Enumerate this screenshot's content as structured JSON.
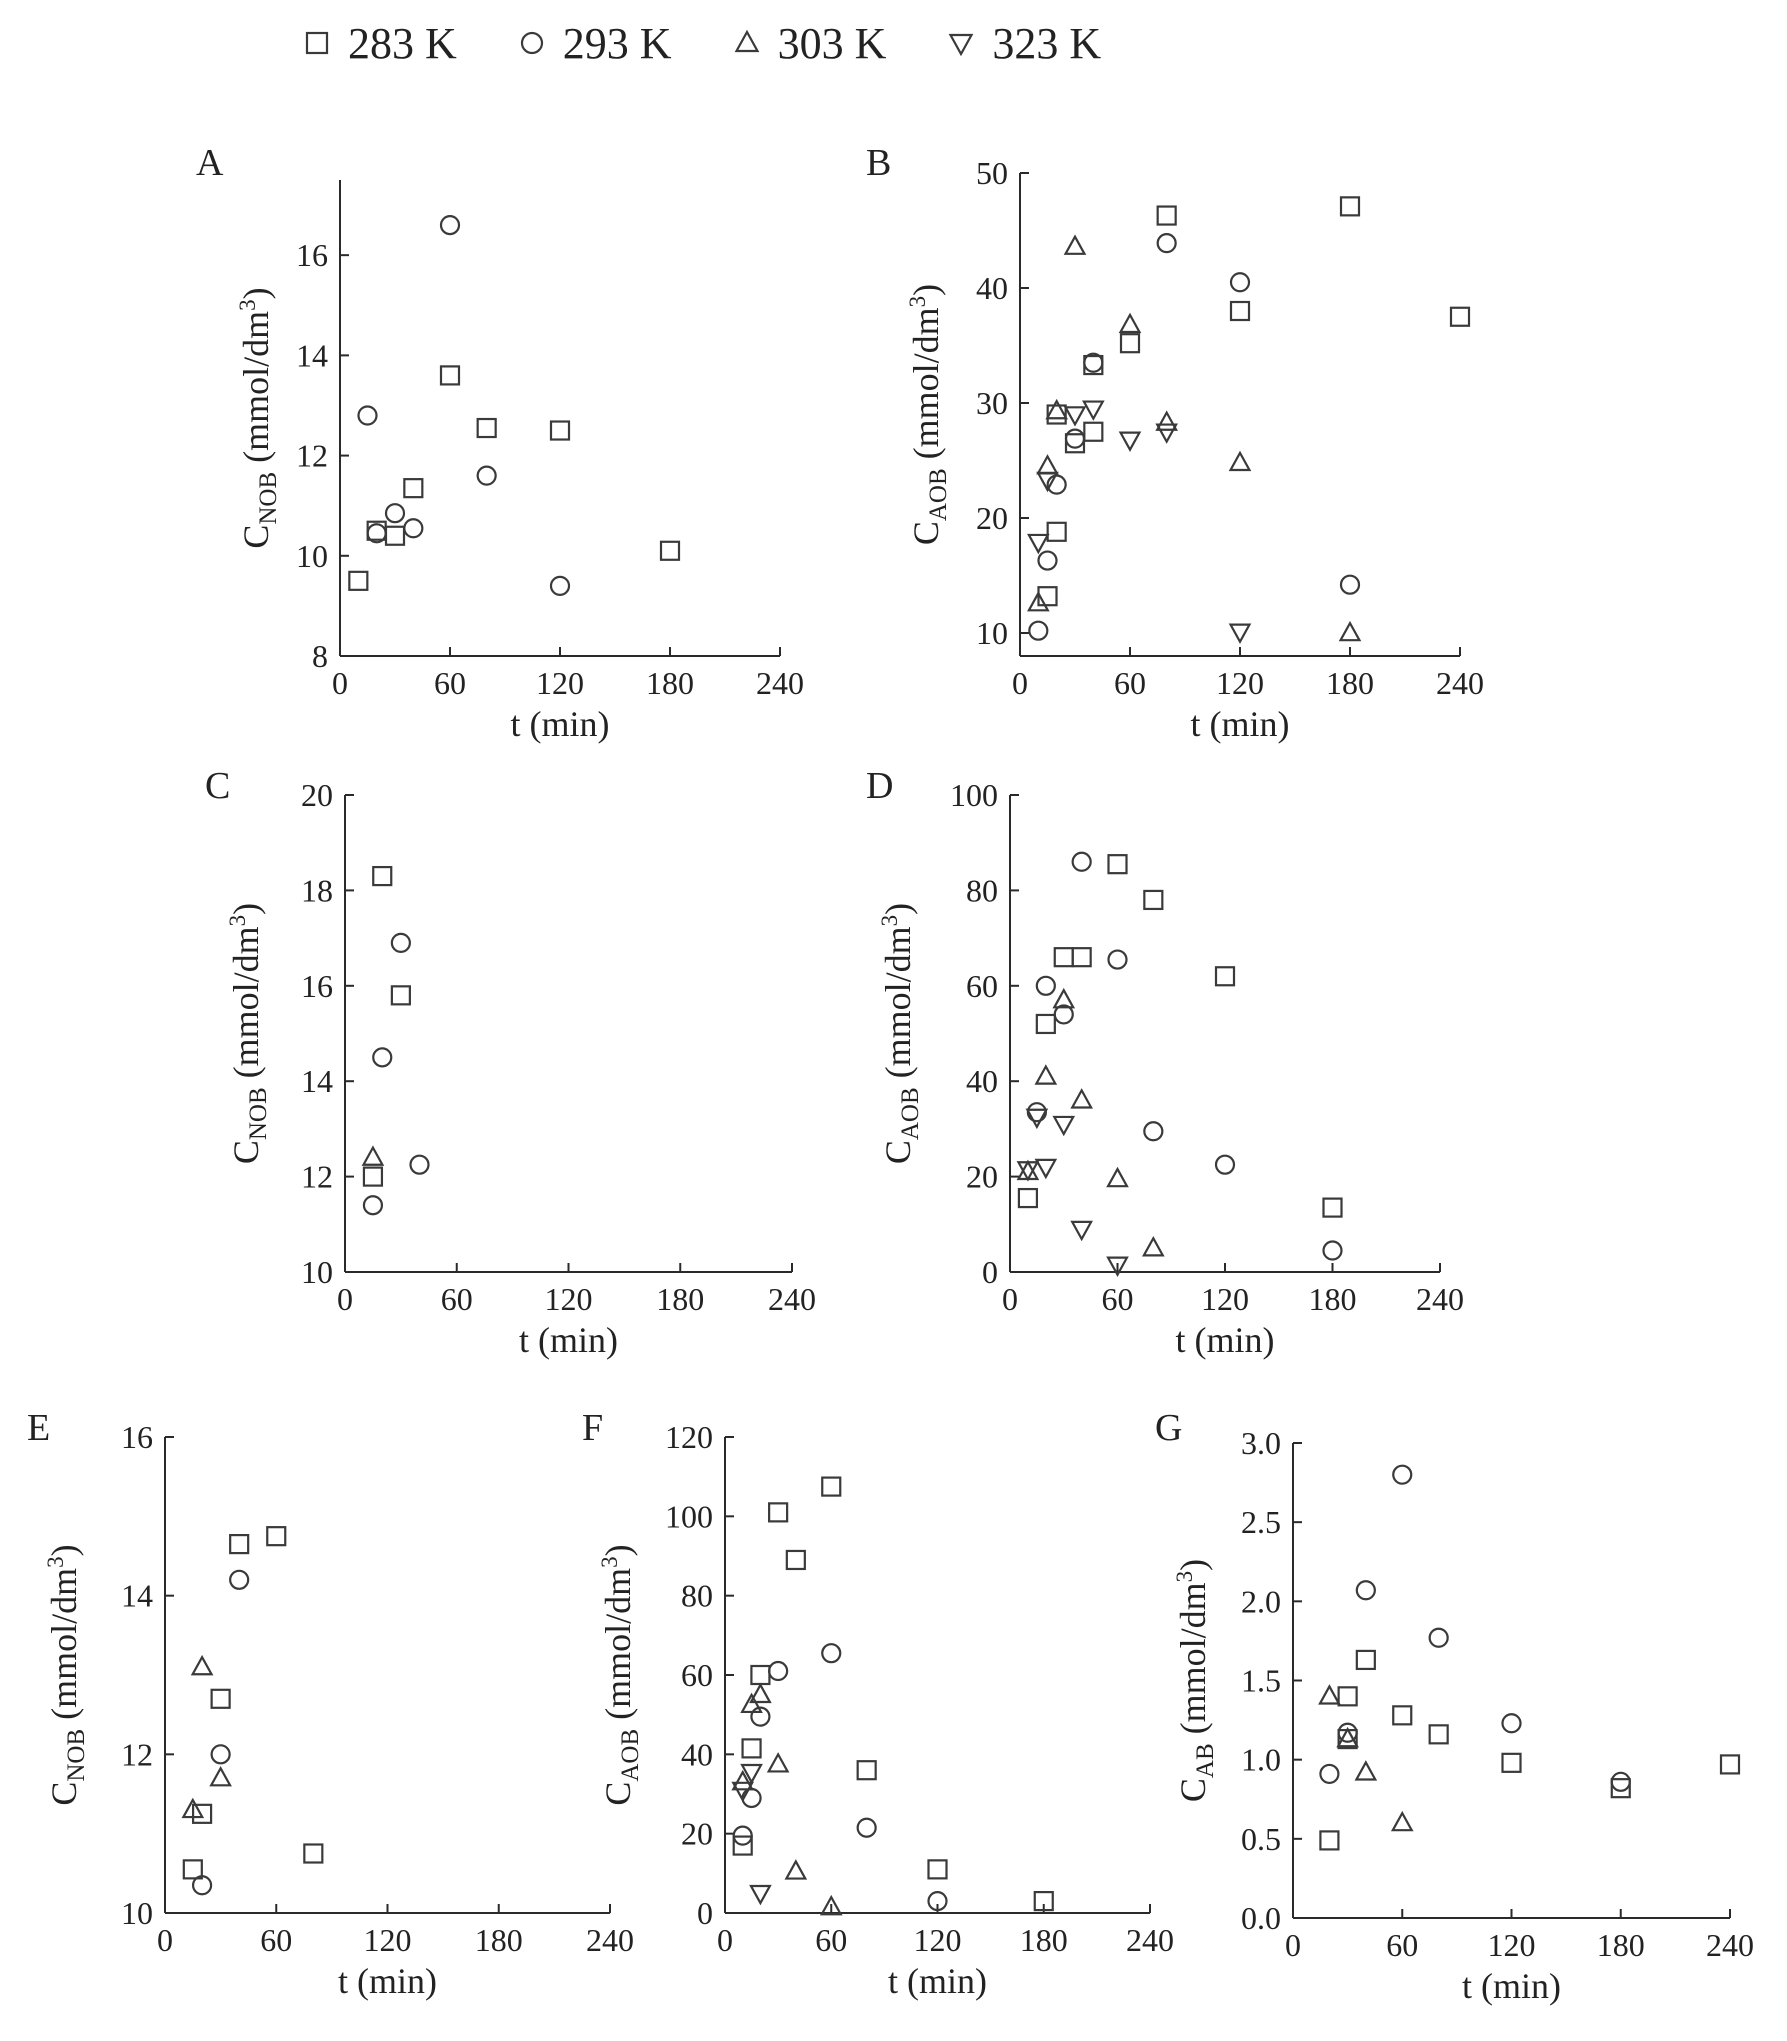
{
  "legend": [
    {
      "marker": "square",
      "label": "283 K"
    },
    {
      "marker": "circle",
      "label": "293 K"
    },
    {
      "marker": "triangle-up",
      "label": "303 K"
    },
    {
      "marker": "triangle-down",
      "label": "323 K"
    }
  ],
  "colors": {
    "marker": "#3a3a3a",
    "axis": "#2a2a2a",
    "text": "#222222"
  },
  "chart_data": [
    {
      "panel": "A",
      "type": "scatter",
      "xlabel": "t (min)",
      "ylabel": {
        "main": "C",
        "sub": "NOB",
        "unit": " (mmol/dm",
        "sup": "3",
        "close": ")"
      },
      "xlim": [
        0,
        240
      ],
      "ylim": [
        8,
        17.5
      ],
      "xticks": [
        0,
        60,
        120,
        180,
        240
      ],
      "yticks": [
        8,
        10,
        12,
        14,
        16
      ],
      "series": [
        {
          "name": "283 K",
          "marker": "square",
          "points": [
            [
              10,
              9.5
            ],
            [
              20,
              10.5
            ],
            [
              30,
              10.4
            ],
            [
              40,
              11.35
            ],
            [
              60,
              13.6
            ],
            [
              80,
              12.55
            ],
            [
              120,
              12.5
            ],
            [
              180,
              10.1
            ]
          ]
        },
        {
          "name": "293 K",
          "marker": "circle",
          "points": [
            [
              15,
              12.8
            ],
            [
              20,
              10.45
            ],
            [
              30,
              10.85
            ],
            [
              40,
              10.55
            ],
            [
              60,
              16.6
            ],
            [
              80,
              11.6
            ],
            [
              120,
              9.4
            ]
          ]
        }
      ]
    },
    {
      "panel": "B",
      "type": "scatter",
      "xlabel": "t (min)",
      "ylabel": {
        "main": "C",
        "sub": "AOB",
        "unit": " (mmol/dm",
        "sup": "3",
        "close": ")"
      },
      "xlim": [
        0,
        240
      ],
      "ylim": [
        8,
        50
      ],
      "xticks": [
        0,
        60,
        120,
        180,
        240
      ],
      "yticks": [
        10,
        20,
        30,
        40,
        50
      ],
      "series": [
        {
          "name": "283 K",
          "marker": "square",
          "points": [
            [
              15,
              13.2
            ],
            [
              20,
              18.8
            ],
            [
              20,
              29.0
            ],
            [
              30,
              26.5
            ],
            [
              40,
              27.5
            ],
            [
              40,
              33.3
            ],
            [
              60,
              35.2
            ],
            [
              80,
              46.3
            ],
            [
              120,
              38.0
            ],
            [
              180,
              47.1
            ],
            [
              240,
              37.5
            ]
          ]
        },
        {
          "name": "293 K",
          "marker": "circle",
          "points": [
            [
              10,
              10.2
            ],
            [
              15,
              16.3
            ],
            [
              20,
              22.9
            ],
            [
              30,
              26.9
            ],
            [
              40,
              33.5
            ],
            [
              80,
              43.9
            ],
            [
              120,
              40.5
            ],
            [
              180,
              14.2
            ]
          ]
        },
        {
          "name": "303 K",
          "marker": "triangle-up",
          "points": [
            [
              10,
              12.6
            ],
            [
              15,
              24.5
            ],
            [
              20,
              29.3
            ],
            [
              30,
              43.6
            ],
            [
              60,
              36.8
            ],
            [
              80,
              28.3
            ],
            [
              120,
              24.8
            ],
            [
              180,
              10.0
            ]
          ]
        },
        {
          "name": "323 K",
          "marker": "triangle-down",
          "points": [
            [
              10,
              17.9
            ],
            [
              15,
              23.3
            ],
            [
              30,
              29.0
            ],
            [
              40,
              29.5
            ],
            [
              60,
              26.8
            ],
            [
              80,
              27.5
            ],
            [
              120,
              10.1
            ]
          ]
        }
      ]
    },
    {
      "panel": "C",
      "type": "scatter",
      "xlabel": "t (min)",
      "ylabel": {
        "main": "C",
        "sub": "NOB",
        "unit": " (mmol/dm",
        "sup": "3",
        "close": ")"
      },
      "xlim": [
        0,
        240
      ],
      "ylim": [
        10,
        20
      ],
      "xticks": [
        0,
        60,
        120,
        180,
        240
      ],
      "yticks": [
        10,
        12,
        14,
        16,
        18,
        20
      ],
      "series": [
        {
          "name": "283 K",
          "marker": "square",
          "points": [
            [
              15,
              12.0
            ],
            [
              20,
              18.3
            ],
            [
              30,
              15.8
            ]
          ]
        },
        {
          "name": "293 K",
          "marker": "circle",
          "points": [
            [
              15,
              11.4
            ],
            [
              20,
              14.5
            ],
            [
              30,
              16.9
            ],
            [
              40,
              12.25
            ]
          ]
        },
        {
          "name": "303 K",
          "marker": "triangle-up",
          "points": [
            [
              15,
              12.4
            ]
          ]
        }
      ]
    },
    {
      "panel": "D",
      "type": "scatter",
      "xlabel": "t (min)",
      "ylabel": {
        "main": "C",
        "sub": "AOB",
        "unit": " (mmol/dm",
        "sup": "3",
        "close": ")"
      },
      "xlim": [
        0,
        240
      ],
      "ylim": [
        0,
        100
      ],
      "xticks": [
        0,
        60,
        120,
        180,
        240
      ],
      "yticks": [
        0,
        20,
        40,
        60,
        80,
        100
      ],
      "series": [
        {
          "name": "283 K",
          "marker": "square",
          "points": [
            [
              10,
              15.5
            ],
            [
              20,
              52
            ],
            [
              30,
              66
            ],
            [
              40,
              66
            ],
            [
              60,
              85.5
            ],
            [
              80,
              78
            ],
            [
              120,
              62
            ],
            [
              180,
              13.5
            ]
          ]
        },
        {
          "name": "293 K",
          "marker": "circle",
          "points": [
            [
              15,
              33.5
            ],
            [
              20,
              60
            ],
            [
              30,
              54
            ],
            [
              40,
              86
            ],
            [
              60,
              65.5
            ],
            [
              80,
              29.5
            ],
            [
              120,
              22.5
            ],
            [
              180,
              4.5
            ]
          ]
        },
        {
          "name": "303 K",
          "marker": "triangle-up",
          "points": [
            [
              10,
              21
            ],
            [
              20,
              41
            ],
            [
              30,
              57
            ],
            [
              40,
              36
            ],
            [
              60,
              19.5
            ],
            [
              80,
              5
            ]
          ]
        },
        {
          "name": "323 K",
          "marker": "triangle-down",
          "points": [
            [
              10,
              21.5
            ],
            [
              15,
              32.5
            ],
            [
              20,
              22
            ],
            [
              30,
              31
            ],
            [
              40,
              9
            ],
            [
              60,
              1.5
            ]
          ]
        }
      ]
    },
    {
      "panel": "E",
      "type": "scatter",
      "xlabel": "t (min)",
      "ylabel": {
        "main": "C",
        "sub": "NOB",
        "unit": " (mmol/dm",
        "sup": "3",
        "close": ")"
      },
      "xlim": [
        0,
        240
      ],
      "ylim": [
        10,
        16
      ],
      "xticks": [
        0,
        60,
        120,
        180,
        240
      ],
      "yticks": [
        10,
        12,
        14,
        16
      ],
      "series": [
        {
          "name": "283 K",
          "marker": "square",
          "points": [
            [
              15,
              10.55
            ],
            [
              20,
              11.25
            ],
            [
              30,
              12.7
            ],
            [
              40,
              14.65
            ],
            [
              60,
              14.75
            ],
            [
              80,
              10.75
            ]
          ]
        },
        {
          "name": "293 K",
          "marker": "circle",
          "points": [
            [
              20,
              10.35
            ],
            [
              30,
              12.0
            ],
            [
              40,
              14.2
            ]
          ]
        },
        {
          "name": "303 K",
          "marker": "triangle-up",
          "points": [
            [
              15,
              11.3
            ],
            [
              20,
              13.1
            ],
            [
              30,
              11.7
            ]
          ]
        }
      ]
    },
    {
      "panel": "F",
      "type": "scatter",
      "xlabel": "t (min)",
      "ylabel": {
        "main": "C",
        "sub": "AOB",
        "unit": " (mmol/dm",
        "sup": "3",
        "close": ")"
      },
      "xlim": [
        0,
        240
      ],
      "ylim": [
        0,
        120
      ],
      "xticks": [
        0,
        60,
        120,
        180,
        240
      ],
      "yticks": [
        0,
        20,
        40,
        60,
        80,
        100,
        120
      ],
      "series": [
        {
          "name": "283 K",
          "marker": "square",
          "points": [
            [
              10,
              17
            ],
            [
              15,
              41.5
            ],
            [
              20,
              60
            ],
            [
              30,
              101
            ],
            [
              40,
              89
            ],
            [
              60,
              107.5
            ],
            [
              80,
              36
            ],
            [
              120,
              11
            ],
            [
              180,
              3
            ]
          ]
        },
        {
          "name": "293 K",
          "marker": "circle",
          "points": [
            [
              10,
              19.5
            ],
            [
              15,
              29
            ],
            [
              20,
              49.5
            ],
            [
              30,
              61
            ],
            [
              60,
              65.5
            ],
            [
              80,
              21.5
            ],
            [
              120,
              3
            ]
          ]
        },
        {
          "name": "303 K",
          "marker": "triangle-up",
          "points": [
            [
              10,
              33
            ],
            [
              15,
              52.5
            ],
            [
              20,
              55
            ],
            [
              30,
              37.5
            ],
            [
              40,
              10.5
            ],
            [
              60,
              1.5
            ]
          ]
        },
        {
          "name": "323 K",
          "marker": "triangle-down",
          "points": [
            [
              10,
              31
            ],
            [
              15,
              35.5
            ],
            [
              20,
              5
            ]
          ]
        }
      ]
    },
    {
      "panel": "G",
      "type": "scatter",
      "xlabel": "t (min)",
      "ylabel": {
        "main": "C",
        "sub": "AB",
        "unit": " (mmol/dm",
        "sup": "3",
        "close": ")"
      },
      "xlim": [
        0,
        240
      ],
      "ylim": [
        0,
        3.0
      ],
      "xticks": [
        0,
        60,
        120,
        180,
        240
      ],
      "yticks": [
        "0.0",
        "0.5",
        "1.0",
        "1.5",
        "2.0",
        "2.5",
        "3.0"
      ],
      "series": [
        {
          "name": "283 K",
          "marker": "square",
          "points": [
            [
              20,
              0.49
            ],
            [
              30,
              1.4
            ],
            [
              30,
              1.13
            ],
            [
              40,
              1.63
            ],
            [
              60,
              1.28
            ],
            [
              80,
              1.16
            ],
            [
              120,
              0.98
            ],
            [
              180,
              0.82
            ],
            [
              240,
              0.97
            ]
          ]
        },
        {
          "name": "293 K",
          "marker": "circle",
          "points": [
            [
              20,
              0.91
            ],
            [
              30,
              1.17
            ],
            [
              40,
              2.07
            ],
            [
              60,
              2.8
            ],
            [
              80,
              1.77
            ],
            [
              120,
              1.23
            ],
            [
              180,
              0.86
            ]
          ]
        },
        {
          "name": "303 K",
          "marker": "triangle-up",
          "points": [
            [
              20,
              1.4
            ],
            [
              30,
              1.13
            ],
            [
              40,
              0.92
            ],
            [
              60,
              0.6
            ]
          ]
        }
      ]
    }
  ]
}
